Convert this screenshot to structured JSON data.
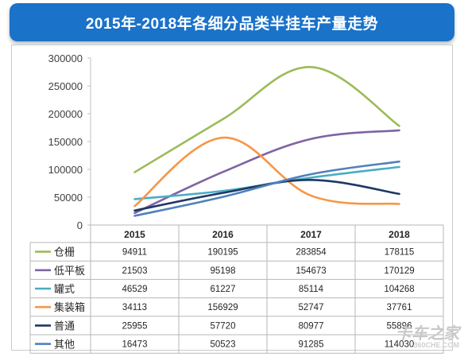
{
  "chart_data": {
    "type": "line",
    "title": "2015年-2018年各细分品类半挂车产量走势",
    "categories": [
      "2015",
      "2016",
      "2017",
      "2018"
    ],
    "ylim": [
      0,
      300000
    ],
    "yticks": [
      "300000",
      "250000",
      "200000",
      "150000",
      "100000",
      "50000",
      "0"
    ],
    "grid": false,
    "legend": "table-below",
    "series": [
      {
        "name": "仓栅",
        "color": "#9bbb59",
        "values": [
          94911,
          190195,
          283854,
          178115
        ],
        "labels": [
          "94911",
          "190195",
          "283854",
          "178115"
        ]
      },
      {
        "name": "低平板",
        "color": "#8064a2",
        "values": [
          21503,
          95198,
          154673,
          170129
        ],
        "labels": [
          "21503",
          "95198",
          "154673",
          "170129"
        ]
      },
      {
        "name": "罐式",
        "color": "#4bacc6",
        "values": [
          46529,
          61227,
          85114,
          104268
        ],
        "labels": [
          "46529",
          "61227",
          "85114",
          "104268"
        ]
      },
      {
        "name": "集装箱",
        "color": "#f79646",
        "values": [
          34113,
          156929,
          52747,
          37761
        ],
        "labels": [
          "34113",
          "156929",
          "52747",
          "37761"
        ]
      },
      {
        "name": "普通",
        "color": "#1f3864",
        "values": [
          25955,
          57720,
          80977,
          55896
        ],
        "labels": [
          "25955",
          "57720",
          "80977",
          "55896"
        ]
      },
      {
        "name": "其他",
        "color": "#4f81bd",
        "values": [
          16473,
          50523,
          91285,
          114030
        ],
        "labels": [
          "16473",
          "50523",
          "91285",
          "114030"
        ]
      }
    ]
  },
  "watermark": {
    "main": "卡车之家",
    "sub": "360CHE.COM"
  }
}
